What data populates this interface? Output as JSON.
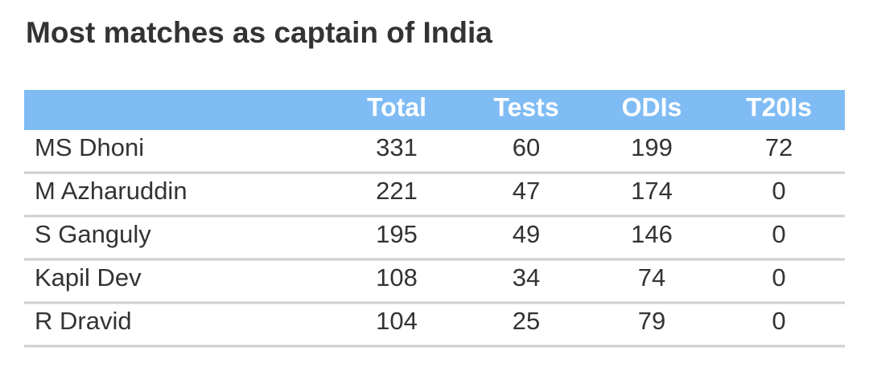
{
  "title": "Most matches as captain of India",
  "table": {
    "columns": [
      "Total",
      "Tests",
      "ODIs",
      "T20Is"
    ],
    "rows": [
      [
        "MS Dhoni",
        "331",
        "60",
        "199",
        "72"
      ],
      [
        "M Azharuddin",
        "221",
        "47",
        "174",
        "0"
      ],
      [
        "S Ganguly",
        "195",
        "49",
        "146",
        "0"
      ],
      [
        "Kapil Dev",
        "108",
        "34",
        "74",
        "0"
      ],
      [
        "R Dravid",
        "104",
        "25",
        "79",
        "0"
      ]
    ]
  }
}
